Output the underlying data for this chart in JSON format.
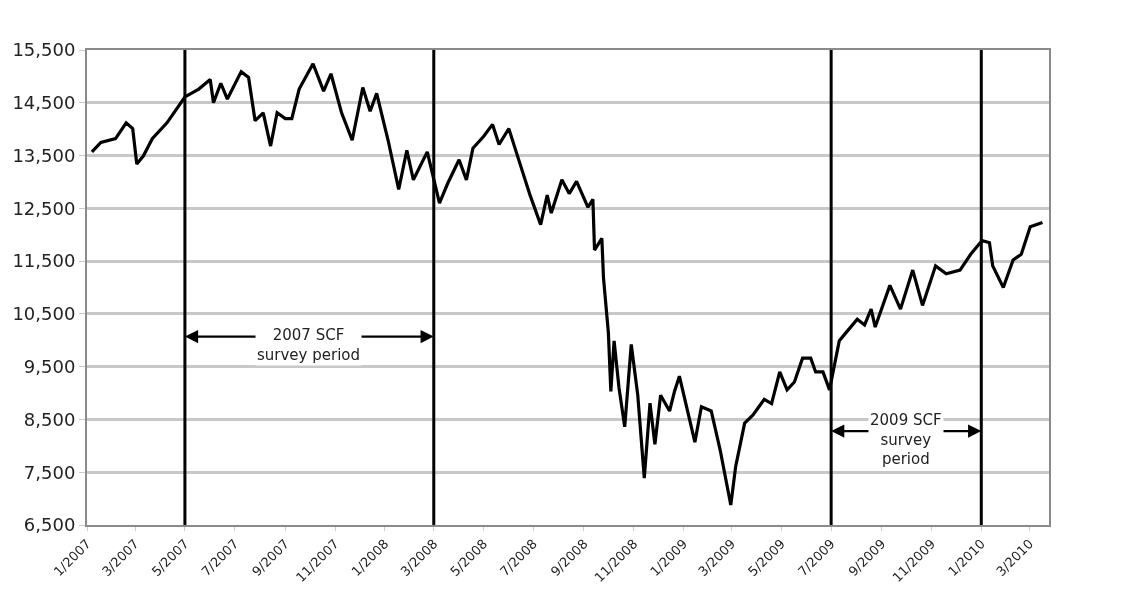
{
  "chart_data": {
    "type": "line",
    "x": [
      "2007-01-07",
      "2007-01-18",
      "2007-02-05",
      "2007-02-18",
      "2007-02-26",
      "2007-03-03",
      "2007-03-11",
      "2007-03-22",
      "2007-04-09",
      "2007-05-01",
      "2007-05-18",
      "2007-06-01",
      "2007-06-05",
      "2007-06-14",
      "2007-06-22",
      "2007-07-09",
      "2007-07-18",
      "2007-07-26",
      "2007-08-05",
      "2007-08-14",
      "2007-08-22",
      "2007-09-01",
      "2007-09-09",
      "2007-09-18",
      "2007-10-05",
      "2007-10-18",
      "2007-10-27",
      "2007-11-09",
      "2007-11-22",
      "2007-12-05",
      "2007-12-14",
      "2007-12-22",
      "2008-01-05",
      "2008-01-18",
      "2008-01-28",
      "2008-02-05",
      "2008-02-22",
      "2008-03-08",
      "2008-03-18",
      "2008-04-01",
      "2008-04-10",
      "2008-04-18",
      "2008-05-01",
      "2008-05-12",
      "2008-05-20",
      "2008-06-01",
      "2008-06-10",
      "2008-06-27",
      "2008-07-10",
      "2008-07-18",
      "2008-07-23",
      "2008-08-05",
      "2008-08-14",
      "2008-08-23",
      "2008-09-06",
      "2008-09-12",
      "2008-09-14",
      "2008-09-23",
      "2008-09-25",
      "2008-10-01",
      "2008-10-04",
      "2008-10-08",
      "2008-10-14",
      "2008-10-21",
      "2008-10-29",
      "2008-11-06",
      "2008-11-14",
      "2008-11-21",
      "2008-11-27",
      "2008-12-04",
      "2008-12-15",
      "2008-12-21",
      "2008-12-27",
      "2009-01-15",
      "2009-01-23",
      "2009-02-04",
      "2009-02-15",
      "2009-02-28",
      "2009-03-06",
      "2009-03-17",
      "2009-03-27",
      "2009-04-10",
      "2009-04-19",
      "2009-04-29",
      "2009-05-08",
      "2009-05-17",
      "2009-05-27",
      "2009-06-06",
      "2009-06-12",
      "2009-06-21",
      "2009-06-29",
      "2009-07-11",
      "2009-07-19",
      "2009-08-02",
      "2009-08-11",
      "2009-08-19",
      "2009-08-24",
      "2009-09-11",
      "2009-09-24",
      "2009-10-09",
      "2009-10-21",
      "2009-11-06",
      "2009-11-19",
      "2009-12-06",
      "2009-12-19",
      "2010-01-02",
      "2010-01-11",
      "2010-01-15",
      "2010-01-28",
      "2010-02-09",
      "2010-02-19",
      "2010-03-02",
      "2010-03-17"
    ],
    "series": [
      {
        "color": "#000000",
        "values": [
          13570,
          13750,
          13820,
          14120,
          14010,
          13340,
          13490,
          13820,
          14120,
          14610,
          14760,
          14940,
          14500,
          14870,
          14570,
          15090,
          14980,
          14160,
          14310,
          13680,
          14310,
          14200,
          14200,
          14760,
          15240,
          14720,
          15050,
          14310,
          13790,
          14790,
          14340,
          14680,
          13790,
          12860,
          13600,
          13040,
          13570,
          12600,
          12970,
          13420,
          13040,
          13640,
          13860,
          14090,
          13710,
          14010,
          13570,
          12750,
          12190,
          12750,
          12410,
          13040,
          12780,
          13010,
          12520,
          12670,
          11710,
          11930,
          11180,
          10140,
          9030,
          9990,
          9100,
          8360,
          9920,
          8960,
          7390,
          8810,
          8030,
          8960,
          8660,
          9030,
          9320,
          8070,
          8740,
          8660,
          7920,
          6880,
          7610,
          8430,
          8580,
          8880,
          8800,
          9400,
          9060,
          9210,
          9660,
          9660,
          9400,
          9400,
          9060,
          9990,
          10140,
          10400,
          10290,
          10590,
          10250,
          11040,
          10590,
          11330,
          10660,
          11410,
          11260,
          11330,
          11630,
          11890,
          11850,
          11410,
          11000,
          11520,
          11630,
          12150,
          12230
        ]
      }
    ],
    "xlim": [
      "2007-01-01",
      "2010-03-25"
    ],
    "xticks": [
      {
        "value": "2007-01-01",
        "label": "1/2007"
      },
      {
        "value": "2007-03-01",
        "label": "3/2007"
      },
      {
        "value": "2007-05-01",
        "label": "5/2007"
      },
      {
        "value": "2007-07-01",
        "label": "7/2007"
      },
      {
        "value": "2007-09-01",
        "label": "9/2007"
      },
      {
        "value": "2007-11-01",
        "label": "11/2007"
      },
      {
        "value": "2008-01-01",
        "label": "1/2008"
      },
      {
        "value": "2008-03-01",
        "label": "3/2008"
      },
      {
        "value": "2008-05-01",
        "label": "5/2008"
      },
      {
        "value": "2008-07-01",
        "label": "7/2008"
      },
      {
        "value": "2008-09-01",
        "label": "9/2008"
      },
      {
        "value": "2008-11-01",
        "label": "11/2008"
      },
      {
        "value": "2009-01-01",
        "label": "1/2009"
      },
      {
        "value": "2009-03-01",
        "label": "3/2009"
      },
      {
        "value": "2009-05-01",
        "label": "5/2009"
      },
      {
        "value": "2009-07-01",
        "label": "7/2009"
      },
      {
        "value": "2009-09-01",
        "label": "9/2009"
      },
      {
        "value": "2009-11-01",
        "label": "11/2009"
      },
      {
        "value": "2010-01-01",
        "label": "1/2010"
      },
      {
        "value": "2010-03-01",
        "label": "3/2010"
      }
    ],
    "ylim": [
      6500,
      15500
    ],
    "yticks": [
      {
        "value": 6500,
        "label": "6,500"
      },
      {
        "value": 7500,
        "label": "7,500"
      },
      {
        "value": 8500,
        "label": "8,500"
      },
      {
        "value": 9500,
        "label": "9,500"
      },
      {
        "value": 10500,
        "label": "10,500"
      },
      {
        "value": 11500,
        "label": "11,500"
      },
      {
        "value": 12500,
        "label": "12,500"
      },
      {
        "value": 13500,
        "label": "13,500"
      },
      {
        "value": 14500,
        "label": "14,500"
      },
      {
        "value": 15500,
        "label": "15,500"
      }
    ],
    "grid": "y",
    "line_style": "solid",
    "ref_lines": [
      {
        "axis": "x",
        "value": "2007-05-01",
        "color": "#000000"
      },
      {
        "axis": "x",
        "value": "2008-03-01",
        "color": "#000000"
      },
      {
        "axis": "x",
        "value": "2009-07-01",
        "color": "#000000"
      },
      {
        "axis": "x",
        "value": "2010-01-01",
        "color": "#000000"
      }
    ],
    "annotations": [
      {
        "text": "2007 SCF\nsurvey period",
        "x": "2007-05-01",
        "y": 10070
      },
      {
        "text": "2009 SCF\nsurvey\nperiod",
        "x": "2009-07-01",
        "y": 8280
      }
    ]
  }
}
